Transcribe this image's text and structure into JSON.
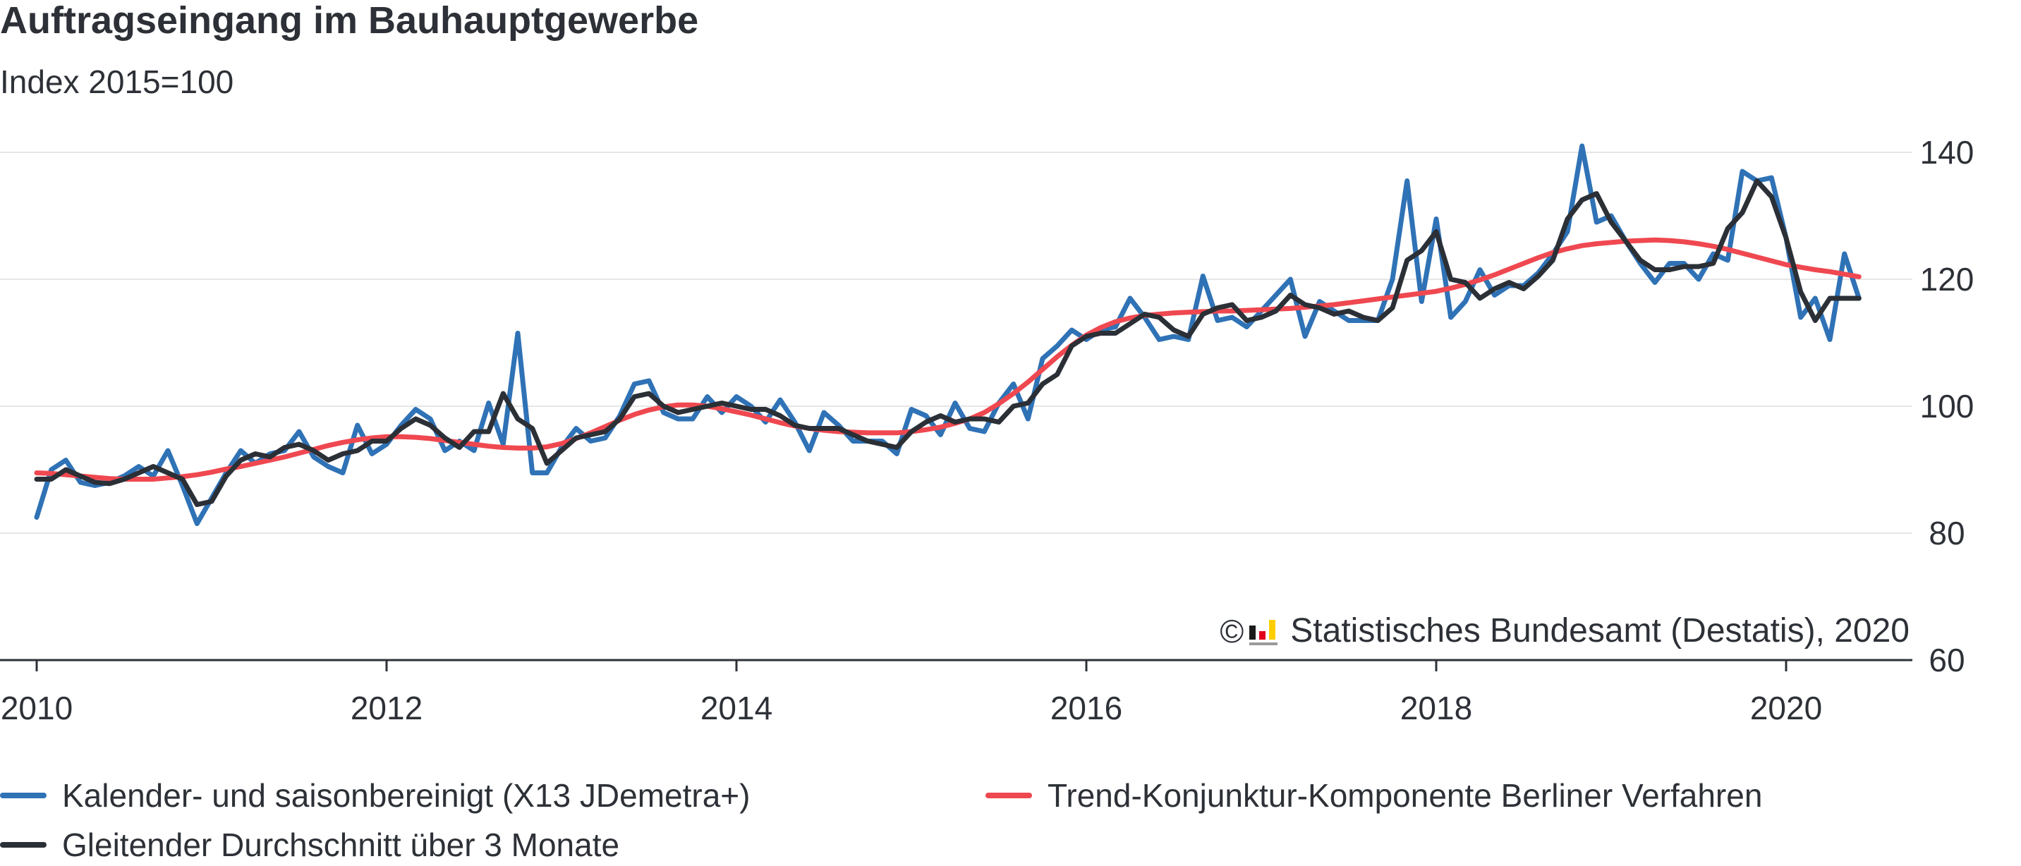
{
  "title": "Auftragseingang im Bauhauptgewerbe",
  "subtitle": "Index 2015=100",
  "source_text": "Statistisches Bundesamt (Destatis), 2020",
  "copyright_symbol": "©",
  "source_icon": "destatis-logo-icon",
  "colors": {
    "series_blue": "#2f72b6",
    "series_red": "#ef4850",
    "series_black": "#2b2f36",
    "grid": "#e6e6e6",
    "axis": "#2d3137"
  },
  "legend": [
    {
      "label": "Kalender- und saisonbereinigt (X13 JDemetra+)",
      "color": "#2f72b6"
    },
    {
      "label": "Trend-Konjunktur-Komponente Berliner Verfahren",
      "color": "#ef4850"
    },
    {
      "label": "Gleitender Durchschnitt über 3 Monate",
      "color": "#2b2f36"
    }
  ],
  "chart_data": {
    "type": "line",
    "title": "Auftragseingang im Bauhauptgewerbe",
    "subtitle": "Index 2015=100",
    "x_start": "2010-01",
    "x_step": "month",
    "xlim": [
      2010,
      2020.58
    ],
    "xticks": [
      "2010",
      "2012",
      "2014",
      "2016",
      "2018",
      "2020"
    ],
    "ylim": [
      60,
      140
    ],
    "yticks": [
      "60",
      "80",
      "100",
      "120",
      "140"
    ],
    "grid": "horizontal",
    "legend_position": "bottom",
    "series": [
      {
        "name": "Kalender- und saisonbereinigt (X13 JDemetra+)",
        "values": [
          82.5,
          90,
          91.5,
          88,
          87.5,
          88,
          89,
          90.5,
          89,
          93,
          87.5,
          81.5,
          85.5,
          89.5,
          93,
          91,
          92.5,
          93,
          96,
          92,
          90.5,
          89.5,
          97,
          92.5,
          94,
          97,
          99.5,
          98,
          93,
          94.5,
          93,
          100.5,
          94,
          111.5,
          89.5,
          89.5,
          93.5,
          96.5,
          94.5,
          95,
          98.5,
          103.5,
          104,
          99,
          98,
          98,
          101.5,
          99,
          101.5,
          100,
          97.5,
          101,
          97.5,
          93,
          99,
          97,
          94.5,
          94.5,
          94.5,
          92.5,
          99.5,
          98.5,
          95.5,
          100.5,
          96.5,
          96,
          100.5,
          103.5,
          98,
          107.5,
          109.5,
          112,
          110.5,
          112,
          112.5,
          117,
          114,
          110.5,
          111,
          110.5,
          120.5,
          113.5,
          114,
          112.5,
          115,
          117.5,
          120,
          111,
          116.5,
          115,
          113.5,
          113.5,
          113.5,
          120,
          135.5,
          116.5,
          129.5,
          114,
          116.5,
          121.5,
          117.5,
          119,
          119,
          121,
          124,
          127.5,
          141,
          129,
          130,
          126,
          122.5,
          119.5,
          122.5,
          122.5,
          120,
          124,
          123,
          137,
          135.5,
          136,
          126.5,
          114,
          117,
          110.5,
          124,
          117
        ]
      },
      {
        "name": "Trend-Konjunktur-Komponente Berliner Verfahren",
        "values": [
          89.5,
          89.4,
          89.2,
          89.0,
          88.8,
          88.6,
          88.5,
          88.5,
          88.5,
          88.7,
          88.9,
          89.2,
          89.6,
          90.1,
          90.5,
          91.0,
          91.5,
          92.0,
          92.6,
          93.2,
          93.8,
          94.3,
          94.7,
          95.0,
          95.2,
          95.2,
          95.1,
          94.9,
          94.6,
          94.3,
          94.0,
          93.7,
          93.5,
          93.4,
          93.4,
          93.6,
          94.1,
          94.9,
          95.8,
          96.8,
          97.8,
          98.7,
          99.4,
          99.9,
          100.2,
          100.2,
          100.0,
          99.6,
          99.1,
          98.6,
          98.0,
          97.4,
          96.9,
          96.5,
          96.2,
          96.0,
          95.9,
          95.8,
          95.8,
          95.8,
          96.0,
          96.3,
          96.7,
          97.3,
          98.0,
          99.0,
          100.4,
          102.0,
          103.8,
          105.8,
          107.8,
          109.6,
          111.2,
          112.4,
          113.3,
          113.9,
          114.3,
          114.5,
          114.7,
          114.8,
          114.9,
          115.0,
          115.0,
          115.1,
          115.2,
          115.3,
          115.4,
          115.6,
          115.8,
          116.0,
          116.3,
          116.6,
          116.9,
          117.2,
          117.5,
          117.8,
          118.1,
          118.6,
          119.2,
          119.9,
          120.7,
          121.6,
          122.5,
          123.4,
          124.2,
          124.8,
          125.3,
          125.6,
          125.8,
          126.0,
          126.1,
          126.2,
          126.1,
          125.9,
          125.6,
          125.2,
          124.7,
          124.1,
          123.5,
          122.9,
          122.3,
          121.9,
          121.5,
          121.2,
          120.8,
          120.4
        ]
      },
      {
        "name": "Gleitender Durchschnitt über 3 Monate",
        "values": [
          88.5,
          88.5,
          90,
          89,
          88,
          87.8,
          88.5,
          89.5,
          90.5,
          89.5,
          88.5,
          84.5,
          85,
          89,
          91.5,
          92.5,
          92,
          93.5,
          94,
          93,
          91.5,
          92.5,
          93,
          94.5,
          94.5,
          96.5,
          98,
          97,
          95,
          93.5,
          96,
          96,
          102,
          98,
          96.5,
          91,
          93,
          95,
          95.5,
          96,
          98,
          101.5,
          102,
          100,
          99,
          99.5,
          100,
          100.5,
          100,
          99.5,
          99.5,
          98.5,
          97,
          96.5,
          96.5,
          96.5,
          95.5,
          94.5,
          94,
          93.5,
          96,
          97.5,
          98.5,
          97.5,
          98,
          98,
          97.5,
          100,
          100.5,
          103.5,
          105,
          109.5,
          111,
          111.5,
          111.5,
          113,
          114.5,
          114,
          112,
          111,
          114.5,
          115.5,
          116,
          113.5,
          114,
          115,
          117.5,
          116,
          115.5,
          114.5,
          115,
          114,
          113.5,
          115.5,
          123,
          124.5,
          127.5,
          120,
          119.5,
          117,
          118.5,
          119.5,
          118.5,
          120.5,
          123,
          129.5,
          132.5,
          133.5,
          129,
          126,
          123,
          121.5,
          121.5,
          122,
          122,
          122.5,
          128,
          130.5,
          135.5,
          133,
          126.5,
          118,
          113.5,
          117,
          117,
          117
        ]
      }
    ]
  }
}
